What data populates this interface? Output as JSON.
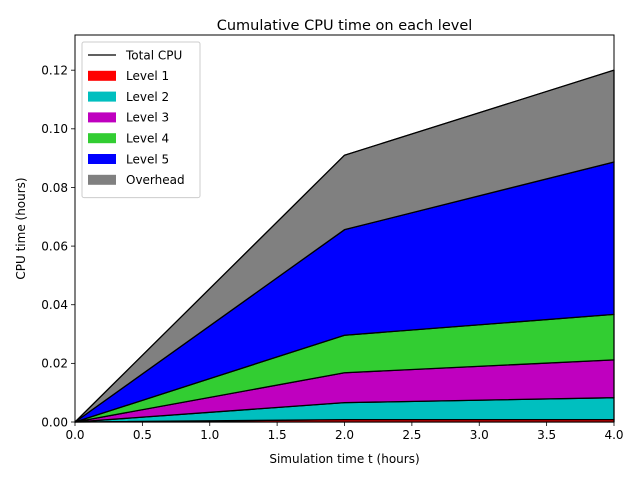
{
  "chart_data": {
    "type": "area",
    "stacked": true,
    "title": "Cumulative CPU time on each level",
    "xlabel": "Simulation time t (hours)",
    "ylabel": "CPU time (hours)",
    "xlim": [
      0.0,
      4.0
    ],
    "ylim": [
      0.0,
      0.132
    ],
    "x_ticks": [
      "0.0",
      "0.5",
      "1.0",
      "1.5",
      "2.0",
      "2.5",
      "3.0",
      "3.5",
      "4.0"
    ],
    "y_ticks": [
      "0.00",
      "0.02",
      "0.04",
      "0.06",
      "0.08",
      "0.10",
      "0.12"
    ],
    "x": [
      0.0,
      2.0,
      4.0
    ],
    "series": [
      {
        "name": "Level 1",
        "values": [
          0.0,
          0.0008,
          0.0008
        ],
        "color": "#ff0000"
      },
      {
        "name": "Level 2",
        "values": [
          0.0,
          0.0058,
          0.0075
        ],
        "color": "#00bfbf"
      },
      {
        "name": "Level 3",
        "values": [
          0.0,
          0.0102,
          0.0129
        ],
        "color": "#bf00bf"
      },
      {
        "name": "Level 4",
        "values": [
          0.0,
          0.0128,
          0.0155
        ],
        "color": "#32cd32"
      },
      {
        "name": "Level 5",
        "values": [
          0.0,
          0.036,
          0.052
        ],
        "color": "#0000ff"
      },
      {
        "name": "Overhead",
        "values": [
          0.0,
          0.0254,
          0.0313
        ],
        "color": "#808080"
      }
    ],
    "total": {
      "name": "Total CPU",
      "values": [
        0.0,
        0.091,
        0.12
      ],
      "color": "#000000"
    },
    "legend_position": "upper-left",
    "grid": false
  }
}
